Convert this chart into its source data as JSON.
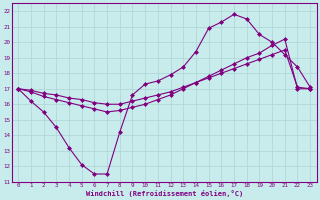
{
  "xlabel": "Windchill (Refroidissement éolien,°C)",
  "bg_color": "#c8ecec",
  "grid_color": "#b0d8d8",
  "line_color": "#800080",
  "xlim": [
    -0.5,
    23.5
  ],
  "ylim": [
    11,
    22.5
  ],
  "xticks": [
    0,
    1,
    2,
    3,
    4,
    5,
    6,
    7,
    8,
    9,
    10,
    11,
    12,
    13,
    14,
    15,
    16,
    17,
    18,
    19,
    20,
    21,
    22,
    23
  ],
  "yticks": [
    11,
    12,
    13,
    14,
    15,
    16,
    17,
    18,
    19,
    20,
    21,
    22
  ],
  "series1_x": [
    0,
    1,
    2,
    3,
    4,
    5,
    6,
    7,
    8,
    9,
    10,
    11,
    12,
    13,
    14,
    15,
    16,
    17,
    18,
    19,
    20,
    21,
    22,
    23
  ],
  "series1_y": [
    17.0,
    16.2,
    15.5,
    14.5,
    13.2,
    12.1,
    11.5,
    11.5,
    14.2,
    16.6,
    17.3,
    17.5,
    17.9,
    18.4,
    19.4,
    20.9,
    21.3,
    21.8,
    21.5,
    20.5,
    20.0,
    19.2,
    18.4,
    17.1
  ],
  "series2_x": [
    0,
    1,
    2,
    3,
    4,
    5,
    6,
    7,
    8,
    9,
    10,
    11,
    12,
    13,
    14,
    15,
    16,
    17,
    18,
    19,
    20,
    21,
    22,
    23
  ],
  "series2_y": [
    17.0,
    16.8,
    16.5,
    16.3,
    16.1,
    15.9,
    15.7,
    15.5,
    15.6,
    15.8,
    16.0,
    16.3,
    16.6,
    17.0,
    17.4,
    17.8,
    18.2,
    18.6,
    19.0,
    19.3,
    19.8,
    20.2,
    17.0,
    17.0
  ],
  "series3_x": [
    0,
    1,
    2,
    3,
    4,
    5,
    6,
    7,
    8,
    9,
    10,
    11,
    12,
    13,
    14,
    15,
    16,
    17,
    18,
    19,
    20,
    21,
    22,
    23
  ],
  "series3_y": [
    17.0,
    16.9,
    16.7,
    16.6,
    16.4,
    16.3,
    16.1,
    16.0,
    16.0,
    16.2,
    16.4,
    16.6,
    16.8,
    17.1,
    17.4,
    17.7,
    18.0,
    18.3,
    18.6,
    18.9,
    19.2,
    19.5,
    17.1,
    17.0
  ]
}
